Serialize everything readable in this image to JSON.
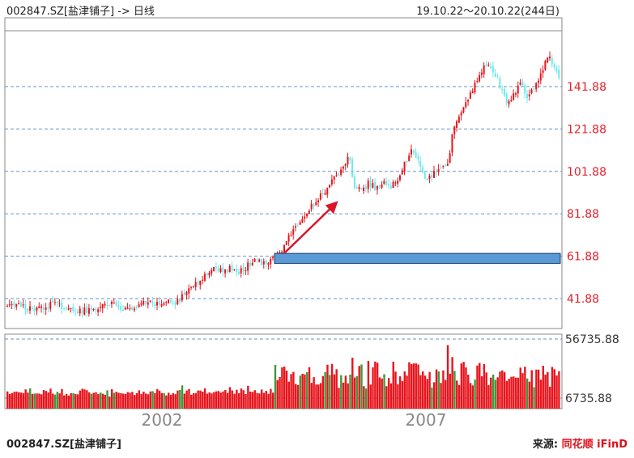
{
  "header": {
    "title": "002847.SZ[盐津铺子] -> 日线",
    "period": "19.10.22～20.10.22(244日)"
  },
  "footer": {
    "stock": "002847.SZ[盐津铺子]",
    "source_label": "来源:",
    "source_brand": "同花顺 iFinD"
  },
  "colors": {
    "up": "#e8141c",
    "down": "#6ee8ea",
    "grid": "#3b7bbf",
    "label": "#e0202a",
    "support_band": "#5a9ad6",
    "arrow": "#d9162a"
  },
  "chart_data": [
    {
      "type": "candlestick",
      "title": "",
      "ylim": [
        32,
        172
      ],
      "y_ticks": [
        "141.88",
        "121.88",
        "101.88",
        "81.88",
        "61.88",
        "41.88"
      ],
      "y_tick_values": [
        141.88,
        121.88,
        101.88,
        81.88,
        61.88,
        41.88
      ],
      "x_tick_labels": [
        "2002",
        "2007"
      ],
      "support_band": [
        58.5,
        63.2
      ],
      "close_path": [
        [
          0,
          38
        ],
        [
          14,
          39
        ],
        [
          28,
          37
        ],
        [
          45,
          38
        ],
        [
          58,
          39
        ],
        [
          72,
          38
        ],
        [
          90,
          36
        ],
        [
          105,
          37
        ],
        [
          118,
          38
        ],
        [
          130,
          39
        ],
        [
          145,
          37
        ],
        [
          160,
          38
        ],
        [
          175,
          40
        ],
        [
          190,
          39
        ],
        [
          202,
          41
        ],
        [
          212,
          40
        ],
        [
          220,
          44
        ],
        [
          228,
          47
        ],
        [
          238,
          50
        ],
        [
          248,
          54
        ],
        [
          258,
          57
        ],
        [
          268,
          54
        ],
        [
          278,
          57
        ],
        [
          288,
          54
        ],
        [
          300,
          58
        ],
        [
          312,
          60
        ],
        [
          322,
          58
        ],
        [
          333,
          61
        ],
        [
          340,
          63
        ],
        [
          348,
          69
        ],
        [
          356,
          76
        ],
        [
          364,
          79
        ],
        [
          372,
          83
        ],
        [
          382,
          87
        ],
        [
          392,
          92
        ],
        [
          402,
          97
        ],
        [
          410,
          100
        ],
        [
          418,
          104
        ],
        [
          424,
          109
        ],
        [
          430,
          95
        ],
        [
          438,
          93
        ],
        [
          448,
          96
        ],
        [
          458,
          94
        ],
        [
          466,
          97
        ],
        [
          476,
          95
        ],
        [
          486,
          100
        ],
        [
          494,
          106
        ],
        [
          502,
          113
        ],
        [
          510,
          106
        ],
        [
          518,
          97
        ],
        [
          526,
          100
        ],
        [
          536,
          103
        ],
        [
          546,
          105
        ],
        [
          552,
          120
        ],
        [
          560,
          128
        ],
        [
          568,
          133
        ],
        [
          576,
          140
        ],
        [
          584,
          147
        ],
        [
          590,
          151
        ],
        [
          598,
          153
        ],
        [
          606,
          147
        ],
        [
          612,
          141
        ],
        [
          620,
          133
        ],
        [
          628,
          139
        ],
        [
          636,
          144
        ],
        [
          644,
          137
        ],
        [
          652,
          141
        ],
        [
          660,
          147
        ],
        [
          668,
          156
        ],
        [
          676,
          153
        ],
        [
          684,
          145
        ],
        [
          688,
          138
        ]
      ],
      "annotation": "arrow"
    },
    {
      "type": "bar",
      "title": "",
      "ylim": [
        0,
        56735.88
      ],
      "y_ticks": [
        "56735.88",
        "6735.88"
      ],
      "y_tick_values": [
        56735.88,
        6735.88
      ]
    }
  ]
}
